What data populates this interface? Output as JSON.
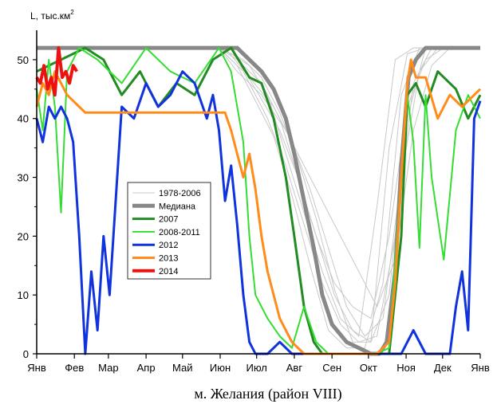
{
  "chart_data": {
    "type": "line",
    "ylabel": "L, тыс.км",
    "ylabel_sup": "2",
    "caption": "м. Желания (район VIII)",
    "ylim": [
      0,
      55
    ],
    "xlim": [
      0,
      365
    ],
    "y_ticks": [
      0,
      10,
      20,
      30,
      40,
      50
    ],
    "x_ticks": [
      {
        "label": "Янв",
        "day": 0
      },
      {
        "label": "Фев",
        "day": 31
      },
      {
        "label": "Мар",
        "day": 59
      },
      {
        "label": "Апр",
        "day": 90
      },
      {
        "label": "Май",
        "day": 120
      },
      {
        "label": "Июн",
        "day": 151
      },
      {
        "label": "Июл",
        "day": 181
      },
      {
        "label": "Авг",
        "day": 212
      },
      {
        "label": "Сен",
        "day": 243
      },
      {
        "label": "Окт",
        "day": 273
      },
      {
        "label": "Ноя",
        "day": 304
      },
      {
        "label": "Дек",
        "day": 334
      },
      {
        "label": "Янв",
        "day": 365
      }
    ],
    "grid": false,
    "legend_position": "center-left",
    "background_band": {
      "name": "1978-2006",
      "color": "#c8c8c8",
      "lines": [
        {
          "x": [
            0,
            150,
            165,
            185,
            200,
            215,
            230,
            245,
            260,
            275,
            290,
            305,
            320,
            365
          ],
          "y": [
            52,
            52,
            50,
            46,
            40,
            30,
            20,
            10,
            4,
            2,
            10,
            40,
            52,
            52
          ]
        },
        {
          "x": [
            0,
            150,
            170,
            190,
            205,
            220,
            235,
            250,
            265,
            280,
            295,
            310,
            325,
            365
          ],
          "y": [
            52,
            52,
            48,
            40,
            32,
            22,
            12,
            5,
            2,
            3,
            20,
            46,
            52,
            52
          ]
        },
        {
          "x": [
            0,
            150,
            160,
            175,
            190,
            205,
            220,
            235,
            250,
            265,
            280,
            295,
            310,
            365
          ],
          "y": [
            52,
            52,
            51,
            49,
            44,
            34,
            24,
            14,
            6,
            3,
            25,
            50,
            52,
            52
          ]
        },
        {
          "x": [
            0,
            155,
            175,
            195,
            210,
            225,
            240,
            255,
            270,
            285,
            300,
            315,
            330,
            365
          ],
          "y": [
            52,
            52,
            47,
            42,
            36,
            28,
            18,
            8,
            3,
            6,
            30,
            48,
            52,
            52
          ]
        },
        {
          "x": [
            0,
            150,
            165,
            180,
            195,
            210,
            225,
            240,
            255,
            270,
            285,
            300,
            315,
            365
          ],
          "y": [
            52,
            52,
            49,
            43,
            37,
            27,
            15,
            4,
            1,
            1,
            12,
            44,
            52,
            52
          ]
        },
        {
          "x": [
            0,
            160,
            180,
            200,
            215,
            230,
            245,
            260,
            275,
            290,
            305,
            320,
            335,
            365
          ],
          "y": [
            52,
            52,
            45,
            38,
            30,
            20,
            12,
            8,
            6,
            20,
            42,
            50,
            52,
            52
          ]
        },
        {
          "x": [
            0,
            150,
            170,
            185,
            200,
            215,
            230,
            245,
            260,
            275,
            290,
            305,
            320,
            365
          ],
          "y": [
            52,
            52,
            50,
            47,
            41,
            33,
            23,
            11,
            2,
            2,
            35,
            51,
            52,
            52
          ]
        },
        {
          "x": [
            0,
            150,
            165,
            185,
            205,
            225,
            245,
            265,
            280,
            295,
            310,
            325,
            340,
            365
          ],
          "y": [
            52,
            52,
            48,
            44,
            38,
            30,
            22,
            14,
            8,
            16,
            38,
            49,
            52,
            52
          ]
        }
      ]
    },
    "series": [
      {
        "name": "Медиана",
        "color": "#888888",
        "width": 5,
        "x": [
          0,
          30,
          60,
          90,
          120,
          150,
          165,
          175,
          185,
          195,
          205,
          212,
          220,
          228,
          235,
          243,
          255,
          265,
          275,
          282,
          288,
          295,
          300,
          306,
          312,
          320,
          330,
          365
        ],
        "y": [
          52,
          52,
          52,
          52,
          52,
          52,
          52,
          50,
          48,
          45,
          40,
          34,
          26,
          18,
          10,
          5,
          2,
          1,
          0,
          0,
          2,
          14,
          32,
          47,
          50,
          52,
          52,
          52
        ]
      },
      {
        "name": "2007",
        "color": "#228b22",
        "width": 3,
        "x": [
          0,
          20,
          40,
          55,
          70,
          85,
          100,
          115,
          130,
          145,
          160,
          175,
          185,
          195,
          205,
          212,
          220,
          228,
          235,
          245,
          260,
          275,
          290,
          300,
          305,
          312,
          320,
          330,
          345,
          355,
          365
        ],
        "y": [
          48,
          50,
          52,
          50,
          44,
          48,
          42,
          46,
          44,
          50,
          52,
          47,
          46,
          40,
          30,
          20,
          8,
          2,
          0,
          0,
          0,
          0,
          0,
          20,
          44,
          46,
          42,
          48,
          45,
          40,
          44
        ]
      },
      {
        "name": "2008-2011",
        "color": "#33dd33",
        "width": 2,
        "x": [
          0,
          5,
          10,
          15,
          20,
          25,
          35,
          50,
          70,
          90,
          110,
          130,
          150,
          160,
          170,
          175,
          180,
          190,
          200,
          210,
          220,
          230,
          240,
          260,
          280,
          290,
          300,
          305,
          310,
          315,
          320,
          325,
          335,
          345,
          355,
          365
        ],
        "y": [
          45,
          38,
          50,
          42,
          24,
          48,
          52,
          50,
          46,
          52,
          48,
          46,
          52,
          48,
          36,
          20,
          10,
          6,
          3,
          1,
          8,
          2,
          0,
          0,
          0,
          1,
          30,
          44,
          36,
          18,
          44,
          30,
          16,
          38,
          44,
          40
        ]
      },
      {
        "name": "2012",
        "color": "#1133dd",
        "width": 3,
        "x": [
          0,
          5,
          10,
          15,
          20,
          25,
          30,
          35,
          40,
          45,
          50,
          55,
          60,
          70,
          80,
          90,
          100,
          110,
          120,
          130,
          140,
          145,
          150,
          155,
          160,
          165,
          170,
          175,
          180,
          190,
          200,
          210,
          220,
          230,
          240,
          250,
          260,
          270,
          280,
          290,
          300,
          310,
          320,
          330,
          340,
          345,
          350,
          355,
          360,
          365
        ],
        "y": [
          40,
          36,
          42,
          40,
          42,
          40,
          36,
          20,
          0,
          14,
          4,
          20,
          10,
          42,
          40,
          46,
          42,
          44,
          48,
          46,
          40,
          44,
          38,
          26,
          32,
          22,
          10,
          2,
          0,
          0,
          2,
          0,
          0,
          0,
          0,
          0,
          0,
          0,
          0,
          0,
          0,
          4,
          0,
          0,
          0,
          8,
          14,
          4,
          40,
          43
        ]
      },
      {
        "name": "2013",
        "color": "#ff8c1a",
        "width": 3,
        "x": [
          0,
          5,
          10,
          15,
          20,
          25,
          30,
          35,
          40,
          50,
          60,
          80,
          100,
          120,
          140,
          150,
          155,
          160,
          165,
          170,
          175,
          180,
          185,
          190,
          200,
          210,
          220,
          230,
          240,
          260,
          280,
          290,
          295,
          300,
          305,
          308,
          312,
          320,
          330,
          340,
          350,
          360,
          365
        ],
        "y": [
          42,
          46,
          44,
          48,
          46,
          44,
          43,
          42,
          41,
          41,
          41,
          41,
          41,
          41,
          41,
          41,
          41,
          38,
          34,
          30,
          34,
          28,
          20,
          14,
          6,
          2,
          0,
          0,
          0,
          0,
          0,
          2,
          12,
          30,
          46,
          50,
          47,
          47,
          40,
          44,
          42,
          44,
          45
        ]
      },
      {
        "name": "2014",
        "color": "#ee1111",
        "width": 4,
        "x": [
          0,
          3,
          6,
          9,
          12,
          15,
          18,
          21,
          24,
          27,
          30,
          33
        ],
        "y": [
          47,
          46,
          49,
          45,
          47,
          44,
          52,
          47,
          48,
          46,
          49,
          48
        ]
      }
    ]
  }
}
